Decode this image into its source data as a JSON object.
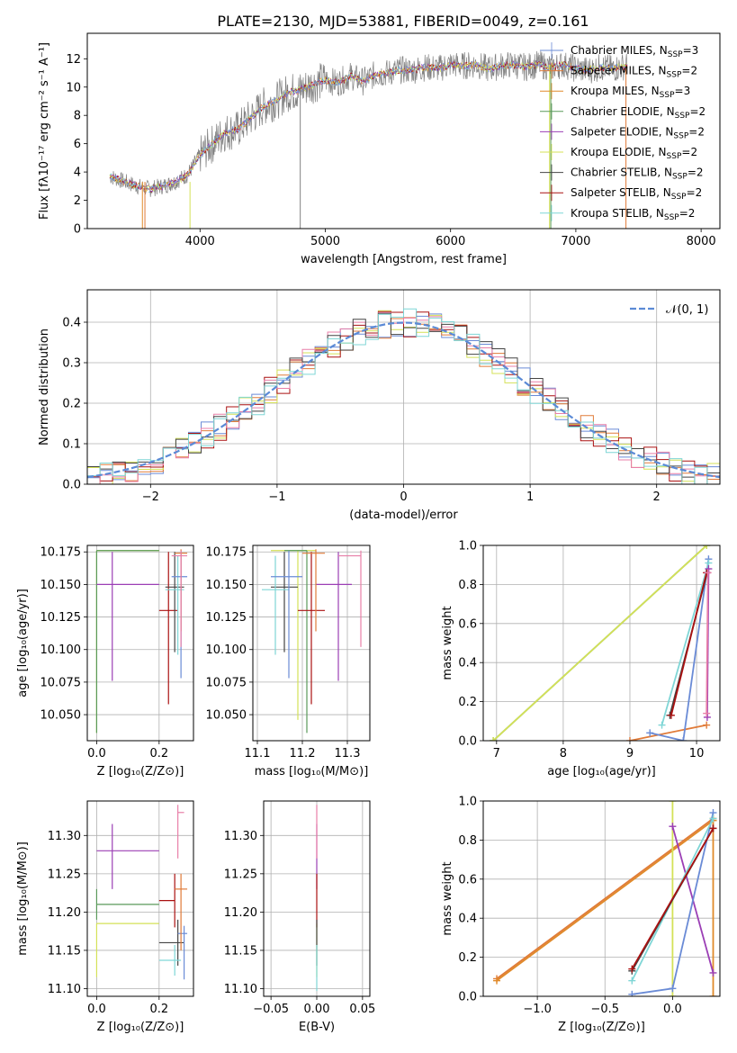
{
  "figure_title": "PLATE=2130, MJD=53881, FIBERID=0049, z=0.161",
  "colors": {
    "chabrier_miles": "#6a8bd6",
    "salpeter_miles": "#e07b39",
    "kroupa_miles": "#e08a2a",
    "chabrier_elodie": "#5a9a5a",
    "salpeter_elodie": "#9b3fb5",
    "kroupa_elodie": "#d4e157",
    "chabrier_stelib": "#444444",
    "salpeter_stelib": "#aa1111",
    "kroupa_stelib": "#7fd6d6",
    "pink": "#e87fa8",
    "data": "#808080",
    "normal_curve": "#5b8ad6"
  },
  "legend_spectrum": [
    {
      "label": "Chabrier MILES, N",
      "sub": "SSP",
      "tail": "=3",
      "color": "#6a8bd6"
    },
    {
      "label": "Salpeter MILES, N",
      "sub": "SSP",
      "tail": "=2",
      "color": "#e07b39"
    },
    {
      "label": "Kroupa MILES, N",
      "sub": "SSP",
      "tail": "=3",
      "color": "#e08a2a"
    },
    {
      "label": "Chabrier ELODIE, N",
      "sub": "SSP",
      "tail": "=2",
      "color": "#5a9a5a"
    },
    {
      "label": "Salpeter ELODIE, N",
      "sub": "SSP",
      "tail": "=2",
      "color": "#9b3fb5"
    },
    {
      "label": "Kroupa ELODIE, N",
      "sub": "SSP",
      "tail": "=2",
      "color": "#d4e157"
    },
    {
      "label": "Chabrier STELIB, N",
      "sub": "SSP",
      "tail": "=2",
      "color": "#444444"
    },
    {
      "label": "Salpeter STELIB, N",
      "sub": "SSP",
      "tail": "=2",
      "color": "#aa1111"
    },
    {
      "label": "Kroupa STELIB, N",
      "sub": "SSP",
      "tail": "=2",
      "color": "#7fd6d6"
    }
  ],
  "chart_data": [
    {
      "id": "spectrum",
      "type": "line",
      "xlabel": "wavelength [Angstrom, rest frame]",
      "ylabel": "Flux [fλ10⁻¹⁷ erg cm⁻² s⁻¹ A⁻¹]",
      "xlim": [
        3100,
        8150
      ],
      "ylim": [
        0,
        13.8
      ],
      "xticks": [
        4000,
        5000,
        6000,
        7000,
        8000
      ],
      "yticks": [
        0,
        2,
        4,
        6,
        8,
        10,
        12
      ],
      "continuum": [
        [
          3280,
          3.7
        ],
        [
          3400,
          3.3
        ],
        [
          3500,
          3.0
        ],
        [
          3600,
          2.8
        ],
        [
          3700,
          3.0
        ],
        [
          3800,
          3.3
        ],
        [
          3900,
          3.8
        ],
        [
          4000,
          5.2
        ],
        [
          4100,
          6.0
        ],
        [
          4200,
          6.8
        ],
        [
          4300,
          7.0
        ],
        [
          4400,
          7.8
        ],
        [
          4500,
          8.6
        ],
        [
          4600,
          9.0
        ],
        [
          4700,
          9.6
        ],
        [
          4800,
          9.8
        ],
        [
          4900,
          10.2
        ],
        [
          5000,
          10.5
        ],
        [
          5100,
          10.3
        ],
        [
          5200,
          10.8
        ],
        [
          5300,
          10.4
        ],
        [
          5400,
          10.9
        ],
        [
          5500,
          11.0
        ],
        [
          5600,
          11.2
        ],
        [
          5700,
          11.2
        ],
        [
          5800,
          11.4
        ],
        [
          5900,
          11.3
        ],
        [
          6000,
          11.6
        ],
        [
          6100,
          11.5
        ],
        [
          6200,
          11.6
        ],
        [
          6300,
          11.3
        ],
        [
          6400,
          11.5
        ],
        [
          6500,
          11.6
        ],
        [
          6600,
          11.4
        ],
        [
          6700,
          11.6
        ],
        [
          6800,
          11.4
        ],
        [
          6900,
          11.6
        ],
        [
          7000,
          11.3
        ],
        [
          7100,
          11.2
        ],
        [
          7200,
          11.4
        ],
        [
          7300,
          11.3
        ],
        [
          7400,
          11.5
        ]
      ]
    },
    {
      "id": "residuals",
      "type": "step",
      "xlabel": "(data-model)/error",
      "ylabel": "Normed distribution",
      "xlim": [
        -2.5,
        2.5
      ],
      "ylim": [
        0,
        0.48
      ],
      "xticks": [
        -2,
        -1,
        0,
        1,
        2
      ],
      "yticks": [
        0.0,
        0.1,
        0.2,
        0.3,
        0.4
      ],
      "legend": "𝒩(0, 1)",
      "bin_width": 0.1
    },
    {
      "id": "age_vs_Z",
      "type": "errorbar",
      "xlabel": "Z [log₁₀(Z/Z⊙)]",
      "ylabel": "age  [log₁₀(age/yr)]",
      "xlim": [
        -0.03,
        0.31
      ],
      "ylim": [
        10.03,
        10.18
      ],
      "xticks": [
        0.0,
        0.2
      ],
      "yticks": [
        10.05,
        10.075,
        10.1,
        10.125,
        10.15,
        10.175
      ],
      "points": [
        {
          "x": 0.0,
          "y": 10.176,
          "xerr": [
            0.0,
            0.2
          ],
          "yerr": [
            0.14,
            0.0
          ],
          "color": "#d4e157"
        },
        {
          "x": 0.0,
          "y": 10.176,
          "xerr": [
            0.0,
            0.2
          ],
          "yerr": [
            0.14,
            0.0
          ],
          "color": "#5a9a5a"
        },
        {
          "x": 0.05,
          "y": 10.15,
          "xerr": [
            0.05,
            0.15
          ],
          "yerr": [
            0.074,
            0.025
          ],
          "color": "#9b3fb5"
        },
        {
          "x": 0.23,
          "y": 10.13,
          "xerr": [
            0.03,
            0.03
          ],
          "yerr": [
            0.072,
            0.045
          ],
          "color": "#aa1111"
        },
        {
          "x": 0.25,
          "y": 10.148,
          "xerr": [
            0.03,
            0.03
          ],
          "yerr": [
            0.05,
            0.027
          ],
          "color": "#444444"
        },
        {
          "x": 0.26,
          "y": 10.146,
          "xerr": [
            0.04,
            0.02
          ],
          "yerr": [
            0.05,
            0.026
          ],
          "color": "#7fd6d6"
        },
        {
          "x": 0.27,
          "y": 10.156,
          "xerr": [
            0.03,
            0.02
          ],
          "yerr": [
            0.078,
            0.02
          ],
          "color": "#6a8bd6"
        },
        {
          "x": 0.27,
          "y": 10.174,
          "xerr": [
            0.02,
            0.02
          ],
          "yerr": [
            0.06,
            0.003
          ],
          "color": "#e07b39"
        },
        {
          "x": 0.27,
          "y": 10.172,
          "xerr": [
            0.03,
            0.02
          ],
          "yerr": [
            0.07,
            0.004
          ],
          "color": "#e87fa8"
        }
      ]
    },
    {
      "id": "age_vs_mass",
      "type": "errorbar",
      "xlabel": "mass [log₁₀(M/M⊙)]",
      "ylabel": "",
      "xlim": [
        11.09,
        11.35
      ],
      "ylim": [
        10.03,
        10.18
      ],
      "xticks": [
        11.1,
        11.2,
        11.3
      ],
      "yticks": [
        10.05,
        10.075,
        10.1,
        10.125,
        10.15,
        10.175
      ],
      "points": [
        {
          "x": 11.19,
          "y": 10.176,
          "xerr": [
            0.06,
            0.04
          ],
          "yerr": [
            0.13,
            0.0
          ],
          "color": "#d4e157"
        },
        {
          "x": 11.21,
          "y": 10.176,
          "xerr": [
            0.05,
            0.0
          ],
          "yerr": [
            0.14,
            0.0
          ],
          "color": "#5a9a5a"
        },
        {
          "x": 11.28,
          "y": 10.15,
          "xerr": [
            0.05,
            0.03
          ],
          "yerr": [
            0.074,
            0.025
          ],
          "color": "#9b3fb5"
        },
        {
          "x": 11.22,
          "y": 10.13,
          "xerr": [
            0.03,
            0.03
          ],
          "yerr": [
            0.072,
            0.045
          ],
          "color": "#aa1111"
        },
        {
          "x": 11.16,
          "y": 10.148,
          "xerr": [
            0.03,
            0.03
          ],
          "yerr": [
            0.05,
            0.027
          ],
          "color": "#444444"
        },
        {
          "x": 11.14,
          "y": 10.146,
          "xerr": [
            0.03,
            0.03
          ],
          "yerr": [
            0.05,
            0.026
          ],
          "color": "#7fd6d6"
        },
        {
          "x": 11.17,
          "y": 10.156,
          "xerr": [
            0.04,
            0.03
          ],
          "yerr": [
            0.078,
            0.02
          ],
          "color": "#6a8bd6"
        },
        {
          "x": 11.23,
          "y": 10.174,
          "xerr": [
            0.03,
            0.02
          ],
          "yerr": [
            0.06,
            0.003
          ],
          "color": "#e07b39"
        },
        {
          "x": 11.33,
          "y": 10.172,
          "xerr": [
            0.05,
            0.0
          ],
          "yerr": [
            0.07,
            0.004
          ],
          "color": "#e87fa8"
        }
      ]
    },
    {
      "id": "mass_weight_vs_age",
      "type": "line",
      "xlabel": "age  [log₁₀(age/yr)]",
      "ylabel": "mass weight",
      "xlim": [
        6.8,
        10.35
      ],
      "ylim": [
        0,
        1.0
      ],
      "xticks": [
        7,
        8,
        9,
        10
      ],
      "yticks": [
        0.0,
        0.2,
        0.4,
        0.6,
        0.8,
        1.0
      ],
      "series": [
        {
          "color": "#5a9a5a",
          "x": [
            6.95,
            10.15
          ],
          "y": [
            0.0,
            1.0
          ]
        },
        {
          "color": "#d4e157",
          "x": [
            6.95,
            10.15
          ],
          "y": [
            0.0,
            1.0
          ]
        },
        {
          "color": "#e07b39",
          "x": [
            9.0,
            10.15
          ],
          "y": [
            0.0,
            0.08
          ]
        },
        {
          "color": "#6a8bd6",
          "x": [
            9.3,
            9.8,
            10.18
          ],
          "y": [
            0.04,
            0.0,
            0.93
          ]
        },
        {
          "color": "#7fd6d6",
          "x": [
            9.48,
            10.18
          ],
          "y": [
            0.08,
            0.91
          ]
        },
        {
          "color": "#444444",
          "x": [
            9.6,
            10.16
          ],
          "y": [
            0.13,
            0.86
          ]
        },
        {
          "color": "#aa1111",
          "x": [
            9.62,
            10.15
          ],
          "y": [
            0.13,
            0.86
          ]
        },
        {
          "color": "#9b3fb5",
          "x": [
            10.16,
            10.18
          ],
          "y": [
            0.12,
            0.88
          ]
        },
        {
          "color": "#e87fa8",
          "x": [
            10.15,
            10.17
          ],
          "y": [
            0.14,
            0.86
          ]
        }
      ]
    },
    {
      "id": "mass_vs_Z",
      "type": "errorbar",
      "xlabel": "Z [log₁₀(Z/Z⊙)]",
      "ylabel": "mass [log₁₀(M/M⊙)]",
      "xlim": [
        -0.03,
        0.31
      ],
      "ylim": [
        11.09,
        11.345
      ],
      "xticks": [
        0.0,
        0.2
      ],
      "yticks": [
        11.1,
        11.15,
        11.2,
        11.25,
        11.3
      ],
      "points": [
        {
          "x": 0.0,
          "y": 11.185,
          "xerr": [
            0.0,
            0.2
          ],
          "yerr": [
            0.07,
            0.0
          ],
          "color": "#d4e157"
        },
        {
          "x": 0.0,
          "y": 11.21,
          "xerr": [
            0.0,
            0.2
          ],
          "yerr": [
            0.02,
            0.02
          ],
          "color": "#5a9a5a"
        },
        {
          "x": 0.05,
          "y": 11.28,
          "xerr": [
            0.05,
            0.15
          ],
          "yerr": [
            0.05,
            0.035
          ],
          "color": "#9b3fb5"
        },
        {
          "x": 0.25,
          "y": 11.215,
          "xerr": [
            0.05,
            0.0
          ],
          "yerr": [
            0.035,
            0.035
          ],
          "color": "#aa1111"
        },
        {
          "x": 0.26,
          "y": 11.16,
          "xerr": [
            0.06,
            0.02
          ],
          "yerr": [
            0.03,
            0.03
          ],
          "color": "#444444"
        },
        {
          "x": 0.25,
          "y": 11.137,
          "xerr": [
            0.05,
            0.02
          ],
          "yerr": [
            0.02,
            0.02
          ],
          "color": "#7fd6d6"
        },
        {
          "x": 0.28,
          "y": 11.172,
          "xerr": [
            0.02,
            0.01
          ],
          "yerr": [
            0.06,
            0.01
          ],
          "color": "#6a8bd6"
        },
        {
          "x": 0.27,
          "y": 11.23,
          "xerr": [
            0.02,
            0.02
          ],
          "yerr": [
            0.08,
            0.02
          ],
          "color": "#e07b39"
        },
        {
          "x": 0.26,
          "y": 11.33,
          "xerr": [
            0.0,
            0.02
          ],
          "yerr": [
            0.06,
            0.01
          ],
          "color": "#e87fa8"
        }
      ]
    },
    {
      "id": "mass_vs_EBV",
      "type": "errorbar",
      "xlabel": "E(B-V)",
      "ylabel": "",
      "xlim": [
        -0.058,
        0.058
      ],
      "ylim": [
        11.09,
        11.345
      ],
      "xticks": [
        -0.05,
        0.0,
        0.05
      ],
      "yticks": [
        11.1,
        11.15,
        11.2,
        11.25,
        11.3
      ],
      "points": [
        {
          "x": 0.0,
          "y": 11.28,
          "xerr": [
            0,
            0
          ],
          "yerr": [
            0.05,
            0.035
          ],
          "color": "#9b3fb5"
        },
        {
          "x": 0.0,
          "y": 11.215,
          "xerr": [
            0,
            0
          ],
          "yerr": [
            0.035,
            0.035
          ],
          "color": "#aa1111"
        },
        {
          "x": 0.0,
          "y": 11.33,
          "xerr": [
            0,
            0
          ],
          "yerr": [
            0.06,
            0.01
          ],
          "color": "#e87fa8"
        },
        {
          "x": 0.0,
          "y": 11.185,
          "xerr": [
            0,
            0
          ],
          "yerr": [
            0.07,
            0.0
          ],
          "color": "#d4e157"
        },
        {
          "x": 0.0,
          "y": 11.16,
          "xerr": [
            0,
            0
          ],
          "yerr": [
            0.03,
            0.03
          ],
          "color": "#444444"
        },
        {
          "x": 0.0,
          "y": 11.137,
          "xerr": [
            0,
            0
          ],
          "yerr": [
            0.04,
            0.02
          ],
          "color": "#7fd6d6"
        }
      ]
    },
    {
      "id": "mass_weight_vs_Z",
      "type": "line",
      "xlabel": "Z [log₁₀(Z/Z⊙)]",
      "ylabel": "mass weight",
      "xlim": [
        -1.4,
        0.35
      ],
      "ylim": [
        0,
        1.0
      ],
      "xticks": [
        -1.0,
        -0.5,
        0.0
      ],
      "yticks": [
        0.0,
        0.2,
        0.4,
        0.6,
        0.8,
        1.0
      ],
      "series": [
        {
          "color": "#e07b39",
          "x": [
            -1.3,
            0.3
          ],
          "y": [
            0.09,
            0.91
          ]
        },
        {
          "color": "#e08a2a",
          "x": [
            -1.3,
            0.3
          ],
          "y": [
            0.08,
            0.9
          ]
        },
        {
          "color": "#e08a2a",
          "x": [
            0.3,
            0.3
          ],
          "y": [
            0.0,
            0.91
          ]
        },
        {
          "color": "#d4e157",
          "x": [
            0.0,
            0.0
          ],
          "y": [
            0.0,
            1.0
          ]
        },
        {
          "color": "#9b3fb5",
          "x": [
            0.0,
            0.3
          ],
          "y": [
            0.87,
            0.12
          ]
        },
        {
          "color": "#6a8bd6",
          "x": [
            -0.3,
            0.0,
            0.3
          ],
          "y": [
            0.01,
            0.04,
            0.94
          ]
        },
        {
          "color": "#7fd6d6",
          "x": [
            -0.3,
            0.3
          ],
          "y": [
            0.08,
            0.91
          ]
        },
        {
          "color": "#444444",
          "x": [
            -0.3,
            0.3
          ],
          "y": [
            0.13,
            0.86
          ]
        },
        {
          "color": "#aa1111",
          "x": [
            -0.3,
            0.3
          ],
          "y": [
            0.14,
            0.86
          ]
        }
      ]
    }
  ]
}
